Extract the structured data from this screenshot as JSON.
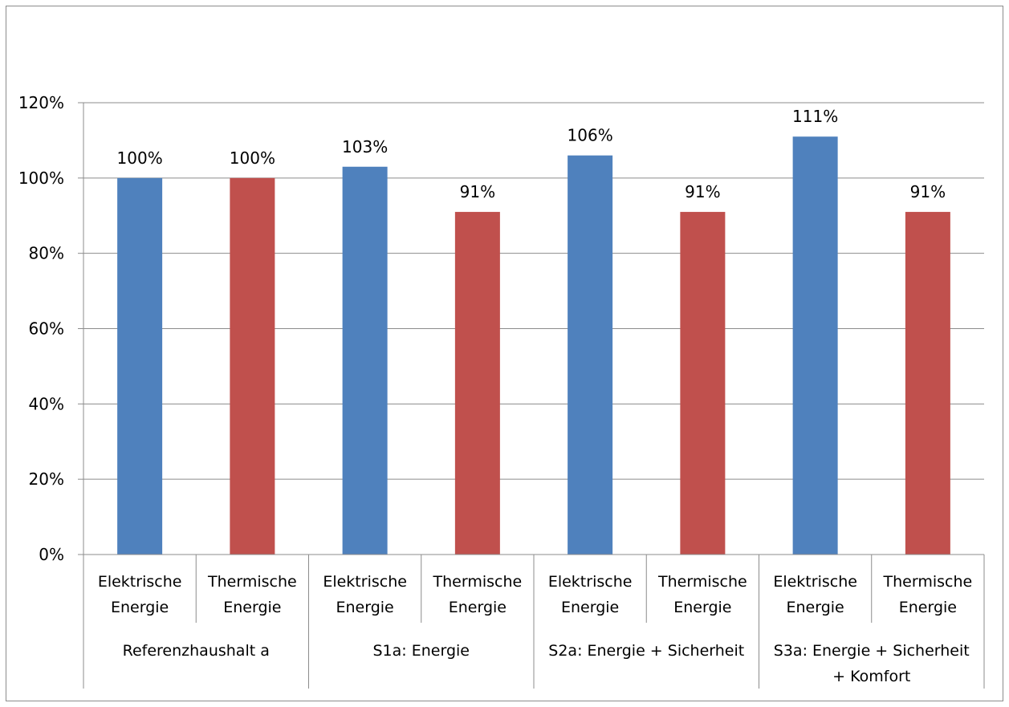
{
  "chart_data": {
    "type": "bar",
    "title": "",
    "xlabel": "",
    "ylabel": "",
    "ylim": [
      0,
      1.2
    ],
    "y_ticks": [
      "0%",
      "20%",
      "40%",
      "60%",
      "80%",
      "100%",
      "120%"
    ],
    "grid": true,
    "legend": "none",
    "groups": [
      "Referenzhaushalt a",
      "S1a: Energie",
      "S2a: Energie + Sicherheit",
      "S3a: Energie + Sicherheit + Komfort"
    ],
    "categories": [
      [
        "Elektrische",
        "Energie"
      ],
      [
        "Thermische",
        "Energie"
      ],
      [
        "Elektrische",
        "Energie"
      ],
      [
        "Thermische",
        "Energie"
      ],
      [
        "Elektrische",
        "Energie"
      ],
      [
        "Thermische",
        "Energie"
      ],
      [
        "Elektrische",
        "Energie"
      ],
      [
        "Thermische",
        "Energie"
      ]
    ],
    "values": [
      1.0,
      1.0,
      1.03,
      0.91,
      1.06,
      0.91,
      1.11,
      0.91
    ],
    "data_labels": [
      "100%",
      "100%",
      "103%",
      "91%",
      "106%",
      "91%",
      "111%",
      "91%"
    ],
    "colors": [
      "#4F81BD",
      "#C0504D",
      "#4F81BD",
      "#C0504D",
      "#4F81BD",
      "#C0504D",
      "#4F81BD",
      "#C0504D"
    ]
  }
}
